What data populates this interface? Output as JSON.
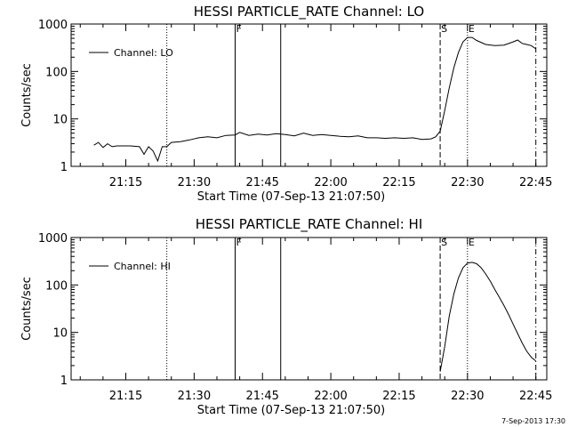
{
  "stamp": "7-Sep-2013 17:30",
  "chart_data": [
    {
      "type": "line",
      "title": "HESSI PARTICLE_RATE Channel: LO",
      "xlabel": "Start Time (07-Sep-13 21:07:50)",
      "ylabel": "Counts/sec",
      "yscale": "log",
      "ylim": [
        1,
        1000
      ],
      "xlim_minutes": [
        21.05,
        22.79
      ],
      "x_ticks": [
        "21:15",
        "21:30",
        "21:45",
        "22:00",
        "22:15",
        "22:30",
        "22:45"
      ],
      "y_ticks": [
        "1",
        "10",
        "100",
        "1000"
      ],
      "legend": {
        "position": "top-left",
        "entries": [
          "Channel: LO"
        ]
      },
      "event_markers": [
        {
          "time": "21:24",
          "style": "dotted",
          "label": ""
        },
        {
          "time": "21:39",
          "style": "solid",
          "label": "F"
        },
        {
          "time": "21:49",
          "style": "solid",
          "label": ""
        },
        {
          "time": "22:24",
          "style": "dashed",
          "label": "S"
        },
        {
          "time": "22:30",
          "style": "dotted",
          "label": "E"
        },
        {
          "time": "22:45",
          "style": "dashdot",
          "label": ""
        }
      ],
      "series": [
        {
          "name": "Channel: LO",
          "points": [
            [
              "21:08",
              2.8
            ],
            [
              "21:09",
              3.2
            ],
            [
              "21:10",
              2.5
            ],
            [
              "21:11",
              3.0
            ],
            [
              "21:12",
              2.6
            ],
            [
              "21:13",
              2.7
            ],
            [
              "21:14",
              2.7
            ],
            [
              "21:16",
              2.7
            ],
            [
              "21:18",
              2.6
            ],
            [
              "21:19",
              1.8
            ],
            [
              "21:20",
              2.6
            ],
            [
              "21:21",
              2.1
            ],
            [
              "21:22",
              1.3
            ],
            [
              "21:23",
              2.6
            ],
            [
              "21:24",
              2.6
            ],
            [
              "21:25",
              3.2
            ],
            [
              "21:27",
              3.3
            ],
            [
              "21:29",
              3.6
            ],
            [
              "21:31",
              4.0
            ],
            [
              "21:33",
              4.2
            ],
            [
              "21:35",
              4.0
            ],
            [
              "21:37",
              4.5
            ],
            [
              "21:39",
              4.6
            ],
            [
              "21:40",
              5.2
            ],
            [
              "21:42",
              4.5
            ],
            [
              "21:44",
              4.8
            ],
            [
              "21:46",
              4.6
            ],
            [
              "21:48",
              4.9
            ],
            [
              "21:50",
              4.7
            ],
            [
              "21:52",
              4.4
            ],
            [
              "21:54",
              5.0
            ],
            [
              "21:56",
              4.5
            ],
            [
              "21:58",
              4.7
            ],
            [
              "22:00",
              4.5
            ],
            [
              "22:02",
              4.3
            ],
            [
              "22:04",
              4.2
            ],
            [
              "22:06",
              4.4
            ],
            [
              "22:08",
              4.0
            ],
            [
              "22:10",
              4.0
            ],
            [
              "22:12",
              3.9
            ],
            [
              "22:14",
              4.0
            ],
            [
              "22:16",
              3.9
            ],
            [
              "22:18",
              4.0
            ],
            [
              "22:20",
              3.7
            ],
            [
              "22:22",
              3.8
            ],
            [
              "22:23",
              4.2
            ],
            [
              "22:24",
              5.5
            ],
            [
              "22:25",
              15
            ],
            [
              "22:26",
              45
            ],
            [
              "22:27",
              120
            ],
            [
              "22:28",
              250
            ],
            [
              "22:29",
              420
            ],
            [
              "22:30",
              520
            ],
            [
              "22:31",
              520
            ],
            [
              "22:32",
              450
            ],
            [
              "22:34",
              370
            ],
            [
              "22:36",
              350
            ],
            [
              "22:38",
              360
            ],
            [
              "22:40",
              420
            ],
            [
              "22:41",
              460
            ],
            [
              "22:42",
              390
            ],
            [
              "22:43",
              370
            ],
            [
              "22:44",
              350
            ],
            [
              "22:45",
              300
            ]
          ]
        }
      ]
    },
    {
      "type": "line",
      "title": "HESSI PARTICLE_RATE Channel: HI",
      "xlabel": "Start Time (07-Sep-13 21:07:50)",
      "ylabel": "Counts/sec",
      "yscale": "log",
      "ylim": [
        1,
        1000
      ],
      "xlim_minutes": [
        21.05,
        22.79
      ],
      "x_ticks": [
        "21:15",
        "21:30",
        "21:45",
        "22:00",
        "22:15",
        "22:30",
        "22:45"
      ],
      "y_ticks": [
        "1",
        "10",
        "100",
        "1000"
      ],
      "legend": {
        "position": "top-left",
        "entries": [
          "Channel: HI"
        ]
      },
      "event_markers": [
        {
          "time": "21:24",
          "style": "dotted",
          "label": ""
        },
        {
          "time": "21:39",
          "style": "solid",
          "label": "F"
        },
        {
          "time": "21:49",
          "style": "solid",
          "label": ""
        },
        {
          "time": "22:24",
          "style": "dashed",
          "label": "S"
        },
        {
          "time": "22:30",
          "style": "dotted",
          "label": "E"
        },
        {
          "time": "22:45",
          "style": "dashdot",
          "label": ""
        }
      ],
      "series": [
        {
          "name": "Channel: HI",
          "points": [
            [
              "22:24",
              1.5
            ],
            [
              "22:25",
              5
            ],
            [
              "22:26",
              22
            ],
            [
              "22:27",
              65
            ],
            [
              "22:28",
              140
            ],
            [
              "22:29",
              230
            ],
            [
              "22:30",
              290
            ],
            [
              "22:31",
              300
            ],
            [
              "22:32",
              280
            ],
            [
              "22:33",
              230
            ],
            [
              "22:34",
              170
            ],
            [
              "22:35",
              120
            ],
            [
              "22:36",
              80
            ],
            [
              "22:37",
              55
            ],
            [
              "22:38",
              37
            ],
            [
              "22:39",
              24
            ],
            [
              "22:40",
              15
            ],
            [
              "22:41",
              9.5
            ],
            [
              "22:42",
              6
            ],
            [
              "22:43",
              4
            ],
            [
              "22:44",
              3
            ],
            [
              "22:45",
              2.5
            ]
          ]
        }
      ]
    }
  ]
}
